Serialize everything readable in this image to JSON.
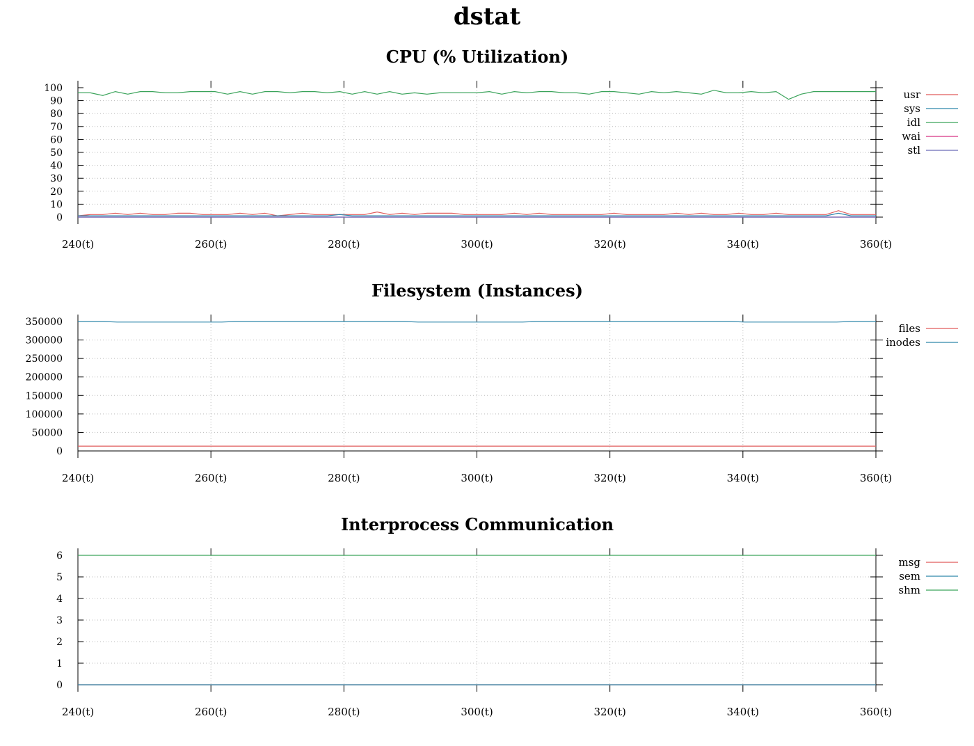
{
  "title": "dstat",
  "colors": {
    "red": "#e05c5c",
    "blue": "#2e86ab",
    "green": "#3aa35a",
    "magenta": "#d63384",
    "purple": "#6b6bb8",
    "dark": "#1a1a2e"
  },
  "chart_data": [
    {
      "type": "line",
      "title": "CPU (% Utilization)",
      "xlim": [
        240,
        360
      ],
      "ylim": [
        0,
        100
      ],
      "xticks": [
        "240(t)",
        "260(t)",
        "280(t)",
        "300(t)",
        "320(t)",
        "340(t)",
        "360(t)"
      ],
      "yticks": [
        "0",
        "10",
        "20",
        "30",
        "40",
        "50",
        "60",
        "70",
        "80",
        "90",
        "100"
      ],
      "legend_position": "right",
      "grid": true,
      "series": [
        {
          "name": "usr",
          "color": "#e05c5c",
          "values": [
            1,
            2,
            2,
            3,
            2,
            3,
            2,
            2,
            3,
            3,
            2,
            2,
            2,
            3,
            2,
            3,
            1,
            2,
            3,
            2,
            2,
            2,
            2,
            2,
            4,
            2,
            3,
            2,
            3,
            3,
            3,
            2,
            2,
            2,
            2,
            3,
            2,
            3,
            2,
            2,
            2,
            2,
            2,
            3,
            2,
            2,
            2,
            2,
            3,
            2,
            3,
            2,
            2,
            3,
            2,
            2,
            3,
            2,
            2,
            2,
            2,
            5,
            2,
            2,
            2
          ]
        },
        {
          "name": "sys",
          "color": "#2e86ab",
          "values": [
            1,
            1,
            1,
            1,
            1,
            1,
            1,
            1,
            1,
            1,
            1,
            1,
            1,
            1,
            1,
            1,
            1,
            1,
            1,
            1,
            1,
            2,
            1,
            1,
            1,
            1,
            1,
            1,
            1,
            1,
            1,
            1,
            1,
            1,
            1,
            1,
            1,
            1,
            1,
            1,
            1,
            1,
            1,
            1,
            1,
            1,
            1,
            1,
            1,
            1,
            1,
            1,
            1,
            1,
            1,
            1,
            1,
            1,
            1,
            1,
            1,
            3,
            1,
            1,
            1
          ]
        },
        {
          "name": "idl",
          "color": "#3aa35a",
          "values": [
            96,
            96,
            94,
            97,
            95,
            97,
            97,
            96,
            96,
            97,
            97,
            97,
            95,
            97,
            95,
            97,
            97,
            96,
            97,
            97,
            96,
            97,
            95,
            97,
            95,
            97,
            95,
            96,
            95,
            96,
            96,
            96,
            96,
            97,
            95,
            97,
            96,
            97,
            97,
            96,
            96,
            95,
            97,
            97,
            96,
            95,
            97,
            96,
            97,
            96,
            95,
            98,
            96,
            96,
            97,
            96,
            97,
            91,
            95,
            97,
            97,
            97,
            97,
            97,
            97
          ]
        },
        {
          "name": "wai",
          "color": "#d63384",
          "values": [
            0,
            0,
            0,
            0,
            0,
            0,
            0,
            0,
            0,
            0,
            0,
            0,
            0,
            0,
            0,
            0,
            0,
            0,
            0,
            0,
            0,
            0,
            0,
            0,
            0,
            0,
            0,
            0,
            0,
            0,
            0,
            0,
            0,
            0,
            0,
            0,
            0,
            0,
            0,
            0,
            0,
            0,
            0,
            0,
            0,
            0,
            0,
            0,
            0,
            0,
            0,
            0,
            0,
            0,
            0,
            0,
            0,
            0,
            0,
            0,
            0,
            0,
            0,
            0,
            0
          ]
        },
        {
          "name": "stl",
          "color": "#6b6bb8",
          "values": [
            0,
            0,
            0,
            0,
            0,
            0,
            0,
            0,
            0,
            0,
            0,
            0,
            0,
            0,
            0,
            0,
            0,
            0,
            0,
            0,
            0,
            0,
            0,
            0,
            0,
            0,
            0,
            0,
            0,
            0,
            0,
            0,
            0,
            0,
            0,
            0,
            0,
            0,
            0,
            0,
            0,
            0,
            0,
            0,
            0,
            0,
            0,
            0,
            0,
            0,
            0,
            0,
            0,
            0,
            0,
            0,
            0,
            0,
            0,
            0,
            0,
            0,
            0,
            0,
            0
          ]
        }
      ]
    },
    {
      "type": "line",
      "title": "Filesystem (Instances)",
      "xlim": [
        240,
        360
      ],
      "ylim": [
        0,
        350000
      ],
      "xticks": [
        "240(t)",
        "260(t)",
        "280(t)",
        "300(t)",
        "320(t)",
        "340(t)",
        "360(t)"
      ],
      "yticks": [
        "0",
        "50000",
        "100000",
        "150000",
        "200000",
        "250000",
        "300000",
        "350000"
      ],
      "legend_position": "right",
      "grid": true,
      "series": [
        {
          "name": "files",
          "color": "#e05c5c",
          "values": [
            13000,
            13000,
            13000,
            13000,
            13000,
            13000,
            13000,
            13000,
            13000,
            13000,
            13000,
            13000,
            13000,
            13000,
            13000,
            13000,
            13000,
            13000,
            13000,
            13000,
            13000,
            13000,
            13000,
            13000,
            13000,
            13000,
            13000,
            13000,
            13000,
            13000,
            13000,
            13000,
            13000,
            13000,
            13000,
            13000,
            13000,
            13000,
            13000,
            13000,
            13000,
            13000,
            13000,
            13000,
            13000,
            13000,
            13000,
            13000,
            13000,
            13000,
            13000,
            13000,
            13000,
            13000,
            13000,
            13000,
            13000,
            13000,
            13000,
            13000,
            13000,
            13000
          ]
        },
        {
          "name": "inodes",
          "color": "#2e86ab",
          "values": [
            350000,
            350000,
            350000,
            348500,
            348500,
            348500,
            348500,
            348500,
            348500,
            348500,
            348500,
            348500,
            350000,
            350000,
            350000,
            350000,
            350000,
            350000,
            350000,
            350000,
            350000,
            350000,
            350000,
            350000,
            350000,
            350000,
            348500,
            348500,
            348500,
            348500,
            348500,
            348500,
            348500,
            348500,
            348500,
            350000,
            350000,
            350000,
            350000,
            350000,
            350000,
            350000,
            350000,
            350000,
            350000,
            350000,
            350000,
            350000,
            350000,
            350000,
            350000,
            348500,
            348500,
            348500,
            348500,
            348500,
            348500,
            348500,
            348500,
            350000,
            350000,
            350000
          ]
        }
      ]
    },
    {
      "type": "line",
      "title": "Interprocess Communication",
      "xlim": [
        240,
        360
      ],
      "ylim": [
        0,
        6
      ],
      "xticks": [
        "240(t)",
        "260(t)",
        "280(t)",
        "300(t)",
        "320(t)",
        "340(t)",
        "360(t)"
      ],
      "yticks": [
        "0",
        "1",
        "2",
        "3",
        "4",
        "5",
        "6"
      ],
      "legend_position": "right",
      "grid": true,
      "series": [
        {
          "name": "msg",
          "color": "#e05c5c",
          "values": [
            0,
            0
          ]
        },
        {
          "name": "sem",
          "color": "#2e86ab",
          "values": [
            0,
            0
          ]
        },
        {
          "name": "shm",
          "color": "#3aa35a",
          "values": [
            6,
            6
          ]
        }
      ]
    }
  ]
}
